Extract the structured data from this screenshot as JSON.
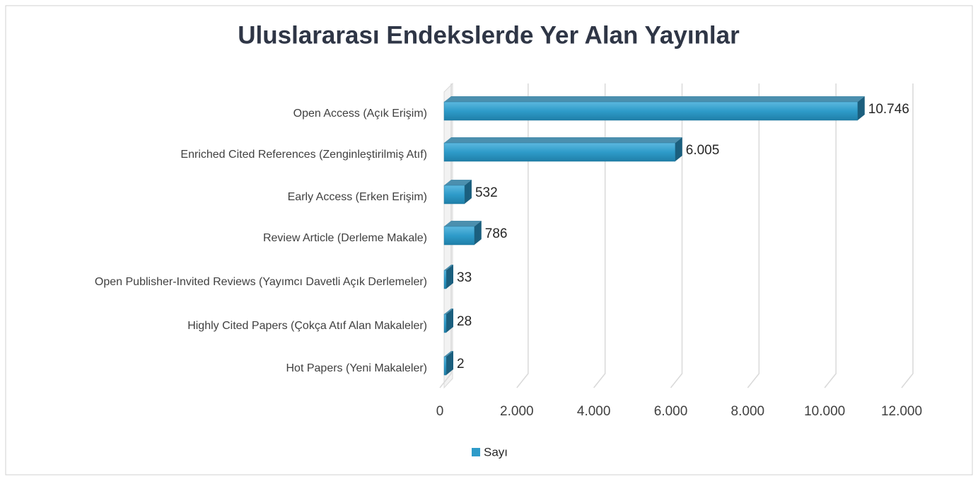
{
  "chart_data": {
    "type": "bar",
    "orientation": "horizontal",
    "title": "Uluslararası Endekslerde Yer Alan Yayınlar",
    "categories": [
      "Open Access (Açık Erişim)",
      "Enriched Cited References (Zenginleştirilmiş Atıf)",
      "Early Access (Erken Erişim)",
      "Review Article (Derleme Makale)",
      "Open Publisher-Invited Reviews (Yayımcı Davetli Açık Derlemeler)",
      "Highly Cited Papers (Çokça Atıf Alan Makaleler)",
      "Hot Papers (Yeni Makaleler)"
    ],
    "series": [
      {
        "name": "Sayı",
        "color": "#2e9bc9",
        "values": [
          10746,
          6005,
          532,
          786,
          33,
          28,
          2
        ],
        "value_labels": [
          "10.746",
          "6.005",
          "532",
          "786",
          "33",
          "28",
          "2"
        ]
      }
    ],
    "xlim": [
      0,
      12000
    ],
    "xticks": [
      0,
      {
        "value": 2000,
        "label": "2.000"
      },
      {
        "value": 4000,
        "label": "4.000"
      },
      {
        "value": 6000,
        "label": "6.000"
      },
      {
        "value": 8000,
        "label": "8.000"
      },
      {
        "value": 10000,
        "label": "10.000"
      },
      {
        "value": 12000,
        "label": "12.000"
      }
    ],
    "grid": true,
    "legend": "bottom"
  }
}
